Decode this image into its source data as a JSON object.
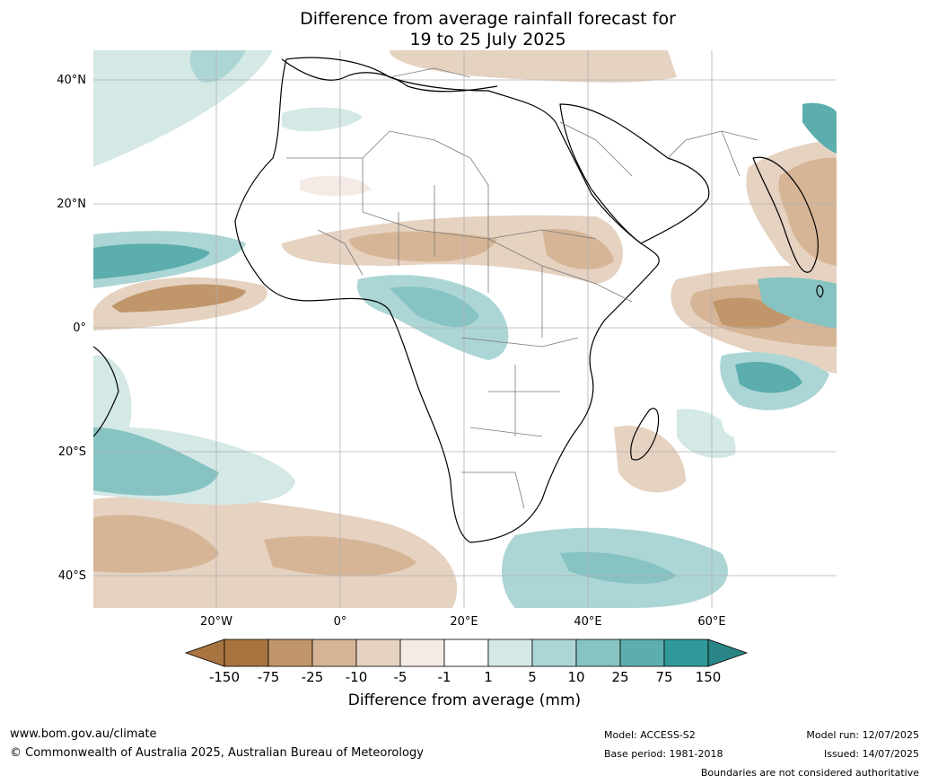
{
  "title_line1": "Difference from average rainfall forecast for",
  "title_line2": "19 to 25 July 2025",
  "lat_labels": [
    "40°N",
    "20°N",
    "0°",
    "20°S",
    "40°S"
  ],
  "lon_labels": [
    "20°W",
    "0°",
    "20°E",
    "40°E",
    "60°E"
  ],
  "colorbar": {
    "title": "Difference from average (mm)",
    "ticks": [
      "-150",
      "-75",
      "-25",
      "-10",
      "-5",
      "-1",
      "1",
      "5",
      "10",
      "25",
      "75",
      "150"
    ],
    "colors": [
      "#a87440",
      "#c0966a",
      "#d6b596",
      "#e5d2c1",
      "#f4ebe6",
      "#ffffff",
      "#d4e8e6",
      "#acd6d5",
      "#86c3c2",
      "#5caeae",
      "#30999a",
      "#2a8586"
    ]
  },
  "footer": {
    "url": "www.bom.gov.au/climate",
    "copyright": "© Commonwealth of Australia 2025, Australian Bureau of Meteorology",
    "model": "Model: ACCESS-S2",
    "base_period": "Base period: 1981-2018",
    "model_run": "Model run: 12/07/2025",
    "issued": "Issued: 14/07/2025",
    "disclaimer": "Boundaries are not considered authoritative"
  }
}
